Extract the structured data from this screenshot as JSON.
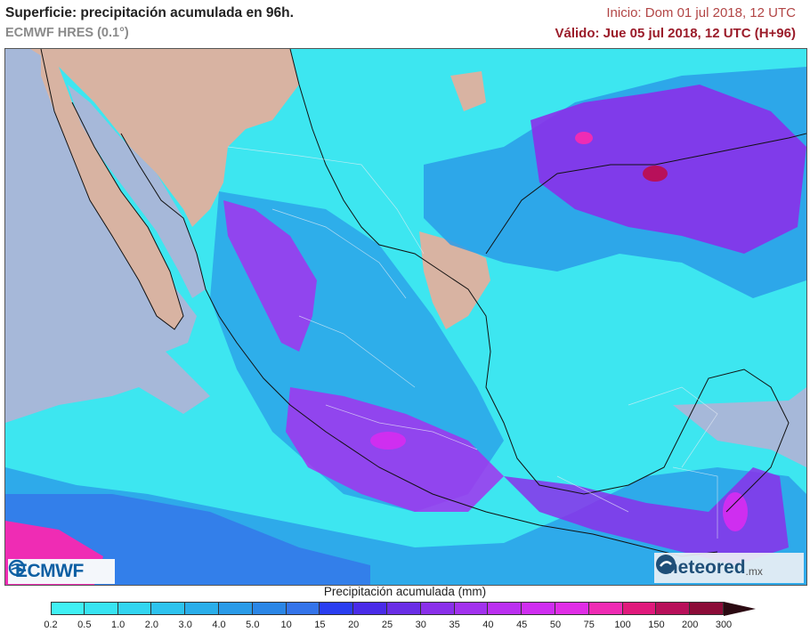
{
  "header": {
    "title": "Superficie: precipitación acumulada en 96h.",
    "subtitle": "ECMWF HRES (0.1°)",
    "init": "Inicio: Dom 01 jul 2018, 12 UTC",
    "valid": "Válido: Jue 05 jul 2018, 12 UTC (H+96)"
  },
  "logos": {
    "left": "ECMWF",
    "right": "meteored",
    "right_suffix": ".mx"
  },
  "legend": {
    "title": "Precipitación acumulada (mm)",
    "ticks": [
      "0.2",
      "0.5",
      "1.0",
      "2.0",
      "3.0",
      "4.0",
      "5.0",
      "10",
      "15",
      "20",
      "25",
      "30",
      "35",
      "40",
      "45",
      "50",
      "75",
      "100",
      "150",
      "200",
      "300"
    ],
    "colors": [
      "#40f0f4",
      "#38e4f2",
      "#33d5f0",
      "#2ec3ee",
      "#2aaeea",
      "#2a9be8",
      "#2b86e6",
      "#3474ea",
      "#2a3ef0",
      "#4a2ce8",
      "#6a2ee6",
      "#8a30ea",
      "#a232ee",
      "#bb30f0",
      "#cf2ef0",
      "#e02ee6",
      "#ef2cb4",
      "#e01a7c",
      "#b8105a",
      "#8c0c38"
    ]
  },
  "colors": {
    "land_dry": "#d8b3a2",
    "sea_dry": "#a6b8d9",
    "light_rain": "#3de6f0",
    "moderate_rain": "#2a9be8",
    "heavy_rain": "#a232ee",
    "extreme_rain": "#ef2cb4",
    "border": "#ffffff",
    "coast": "#111111"
  }
}
